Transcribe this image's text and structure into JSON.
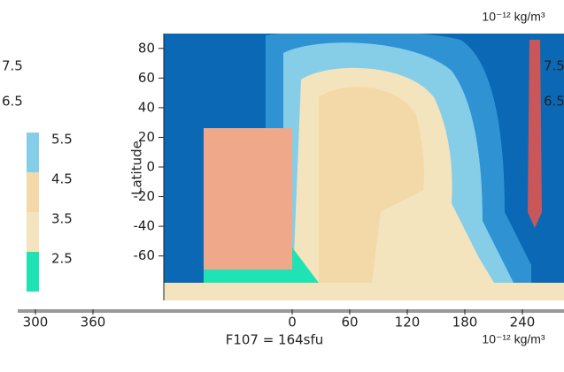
{
  "chart_data": {
    "type": "contour",
    "title": "F107 = 164sfu",
    "unit": "10⁻¹² kg/m³",
    "ylabel": "Latitude",
    "ylim": [
      -90,
      90
    ],
    "yticks": [
      -60,
      -40,
      -20,
      0,
      20,
      40,
      60,
      80
    ],
    "xlim": [
      0,
      360
    ],
    "xticks": [
      0,
      60,
      120,
      180,
      240,
      300,
      360
    ],
    "levels": [
      2.5,
      3.5,
      4.5,
      5.5,
      6.5,
      7.5
    ],
    "colors": [
      "#1fe3b4",
      "#f3e4bd",
      "#f3d9a8",
      "#86cde8",
      "#2f93d3",
      "#0b68b5"
    ]
  }
}
